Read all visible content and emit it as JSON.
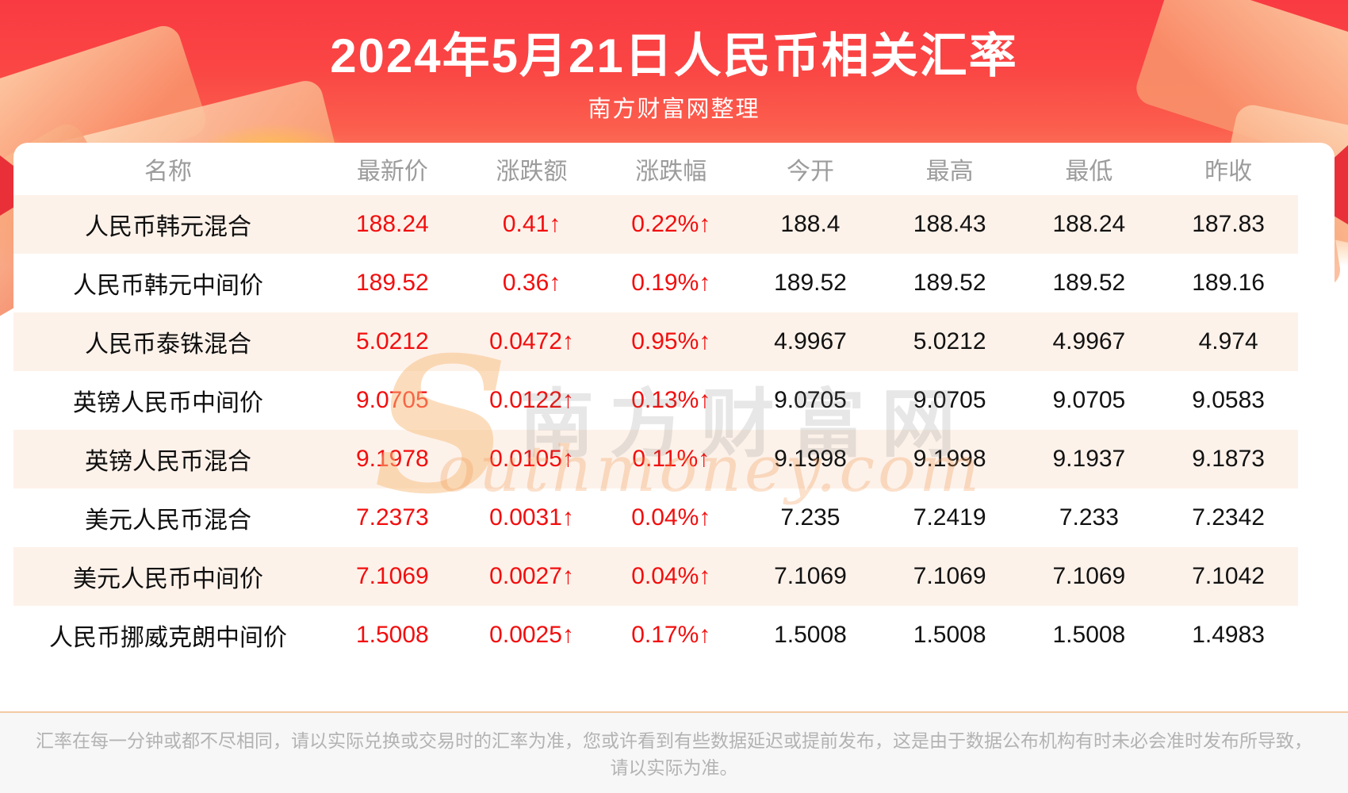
{
  "chart_data": {
    "type": "table",
    "title": "2024年5月21日人民币相关汇率",
    "subtitle": "南方财富网整理",
    "columns": [
      "名称",
      "最新价",
      "涨跌额",
      "涨跌幅",
      "今开",
      "最高",
      "最低",
      "昨收"
    ],
    "rows": [
      [
        "人民币韩元混合",
        "188.24",
        "0.41↑",
        "0.22%↑",
        "188.4",
        "188.43",
        "188.24",
        "187.83"
      ],
      [
        "人民币韩元中间价",
        "189.52",
        "0.36↑",
        "0.19%↑",
        "189.52",
        "189.52",
        "189.52",
        "189.16"
      ],
      [
        "人民币泰铢混合",
        "5.0212",
        "0.0472↑",
        "0.95%↑",
        "4.9967",
        "5.0212",
        "4.9967",
        "4.974"
      ],
      [
        "英镑人民币中间价",
        "9.0705",
        "0.0122↑",
        "0.13%↑",
        "9.0705",
        "9.0705",
        "9.0705",
        "9.0583"
      ],
      [
        "英镑人民币混合",
        "9.1978",
        "0.0105↑",
        "0.11%↑",
        "9.1998",
        "9.1998",
        "9.1937",
        "9.1873"
      ],
      [
        "美元人民币混合",
        "7.2373",
        "0.0031↑",
        "0.04%↑",
        "7.235",
        "7.2419",
        "7.233",
        "7.2342"
      ],
      [
        "美元人民币中间价",
        "7.1069",
        "0.0027↑",
        "0.04%↑",
        "7.1069",
        "7.1069",
        "7.1069",
        "7.1042"
      ],
      [
        "人民币挪威克朗中间价",
        "1.5008",
        "0.0025↑",
        "0.17%↑",
        "1.5008",
        "1.5008",
        "1.5008",
        "1.4983"
      ]
    ]
  },
  "watermark": {
    "initial": "S",
    "cn": "南方财富网",
    "en": "outhmoney.com"
  },
  "footer": {
    "line1": "汇率在每一分钟或都不尽相同，请以实际兑换或交易时的汇率为准，您或许看到有些数据延迟或提前发布，这是由于数据公布机构有时未必会准时发布所导致，",
    "line2": "请以实际为准。"
  },
  "colors": {
    "banner_red": "#f93a42",
    "ribbon_red": "#e93039",
    "gold_decoration": "#f9906a",
    "alt_row_bg": "#fdf2ea",
    "value_red": "#f20e0e",
    "value_black": "#121212",
    "column_header_gray": "#9c9c9c",
    "footer_bg": "#f7f7f7",
    "footer_divider_orange": "#f3c9a2",
    "footer_text_gray": "#b3b3b3"
  }
}
